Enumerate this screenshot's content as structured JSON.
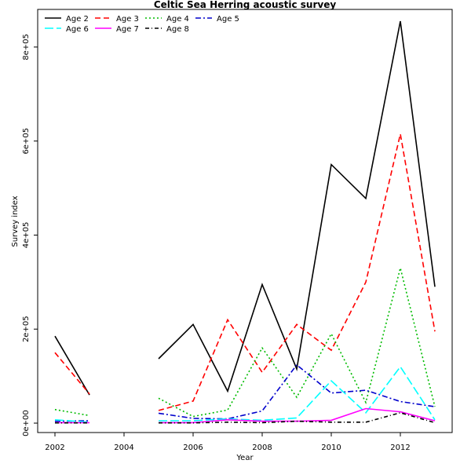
{
  "chart_data": {
    "type": "line",
    "title": "Celtic Sea Herring acoustic survey",
    "xlabel": "Year",
    "ylabel": "Survey index",
    "xlim": [
      2001.5,
      2013.5
    ],
    "ylim": [
      -20000,
      880000
    ],
    "xticks": [
      2002,
      2004,
      2006,
      2008,
      2010,
      2012
    ],
    "yticks": [
      0,
      200000,
      400000,
      600000,
      800000
    ],
    "ytick_labels": [
      "0e+00",
      "2e+05",
      "4e+05",
      "6e+05",
      "8e+05"
    ],
    "x": [
      2002,
      2003,
      2004,
      2005,
      2006,
      2007,
      2008,
      2009,
      2010,
      2011,
      2012,
      2013
    ],
    "legend_position": "top-left",
    "grid": false,
    "series": [
      {
        "name": "Age 2",
        "color": "#000000",
        "dash": "solid",
        "values": [
          185000,
          60000,
          null,
          137000,
          210000,
          68000,
          295000,
          115000,
          550000,
          478000,
          855000,
          290000
        ]
      },
      {
        "name": "Age 3",
        "color": "#ff0000",
        "dash": "dashed",
        "values": [
          150000,
          62000,
          null,
          27000,
          47000,
          220000,
          108000,
          210000,
          155000,
          300000,
          615000,
          195000
        ]
      },
      {
        "name": "Age 4",
        "color": "#00bb00",
        "dash": "dotted",
        "values": [
          29000,
          16000,
          null,
          53000,
          14000,
          28000,
          160000,
          55000,
          190000,
          44000,
          330000,
          35000
        ]
      },
      {
        "name": "Age 5",
        "color": "#0000cc",
        "dash": "dashdot",
        "values": [
          4000,
          5000,
          null,
          21000,
          10000,
          9000,
          26000,
          124000,
          64000,
          70000,
          46000,
          35000
        ]
      },
      {
        "name": "Age 6",
        "color": "#00ffff",
        "dash": "longdash",
        "values": [
          7000,
          2000,
          null,
          5000,
          5000,
          9000,
          6000,
          11000,
          90000,
          22000,
          120000,
          7000
        ]
      },
      {
        "name": "Age 7",
        "color": "#ff00ff",
        "dash": "solid",
        "values": [
          1000,
          1000,
          null,
          1000,
          1000,
          7000,
          4000,
          4000,
          6000,
          31000,
          24000,
          5000
        ]
      },
      {
        "name": "Age 8",
        "color": "#000000",
        "dash": "twodash",
        "values": [
          500,
          500,
          null,
          500,
          500,
          2000,
          1000,
          4000,
          2000,
          2000,
          22000,
          1000
        ]
      }
    ]
  }
}
